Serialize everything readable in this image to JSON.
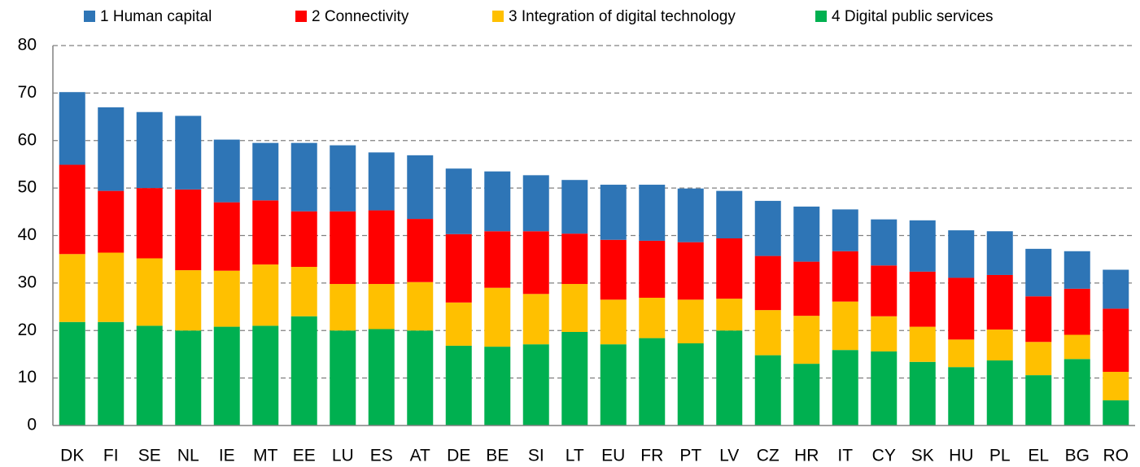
{
  "chart_data": {
    "type": "stacked_bar",
    "categories": [
      "DK",
      "FI",
      "SE",
      "NL",
      "IE",
      "MT",
      "EE",
      "LU",
      "ES",
      "AT",
      "DE",
      "BE",
      "SI",
      "LT",
      "EU",
      "FR",
      "PT",
      "LV",
      "CZ",
      "HR",
      "IT",
      "CY",
      "SK",
      "HU",
      "PL",
      "EL",
      "BG",
      "RO"
    ],
    "series": [
      {
        "name": "1 Human capital",
        "color": "#2e75b6",
        "values": [
          15.3,
          17.6,
          16.0,
          15.5,
          13.2,
          12.1,
          14.4,
          13.9,
          12.2,
          13.4,
          13.8,
          12.6,
          11.8,
          11.3,
          11.6,
          11.8,
          11.3,
          10.0,
          11.6,
          11.6,
          8.8,
          9.7,
          10.8,
          10.0,
          9.2,
          10.0,
          7.9,
          8.2
        ]
      },
      {
        "name": "2 Connectivity",
        "color": "#ff0000",
        "values": [
          18.8,
          13.0,
          14.8,
          17.0,
          14.4,
          13.5,
          11.7,
          15.3,
          15.5,
          13.3,
          14.4,
          11.9,
          13.2,
          10.6,
          12.6,
          12.0,
          12.1,
          12.7,
          11.4,
          11.4,
          10.6,
          10.7,
          11.6,
          13.0,
          11.5,
          9.6,
          9.7,
          13.3
        ]
      },
      {
        "name": "3 Integration of digital technology",
        "color": "#ffc000",
        "values": [
          14.3,
          14.6,
          14.2,
          12.7,
          11.8,
          12.9,
          10.4,
          9.8,
          9.5,
          10.2,
          9.1,
          12.4,
          10.6,
          10.1,
          9.4,
          8.5,
          9.2,
          6.7,
          9.5,
          10.1,
          10.2,
          7.4,
          7.4,
          5.8,
          6.5,
          7.0,
          5.1,
          6.0
        ]
      },
      {
        "name": "4 Digital public services",
        "color": "#00b050",
        "values": [
          21.8,
          21.8,
          21.0,
          20.0,
          20.8,
          21.0,
          23.0,
          20.0,
          20.3,
          20.0,
          16.8,
          16.6,
          17.1,
          19.7,
          17.1,
          18.4,
          17.3,
          20.0,
          14.8,
          13.0,
          15.9,
          15.6,
          13.4,
          12.3,
          13.7,
          10.6,
          14.0,
          5.3
        ]
      }
    ],
    "ylim": [
      0,
      80
    ],
    "yticks": [
      0,
      10,
      20,
      30,
      40,
      50,
      60,
      70,
      80
    ],
    "grid": true
  }
}
